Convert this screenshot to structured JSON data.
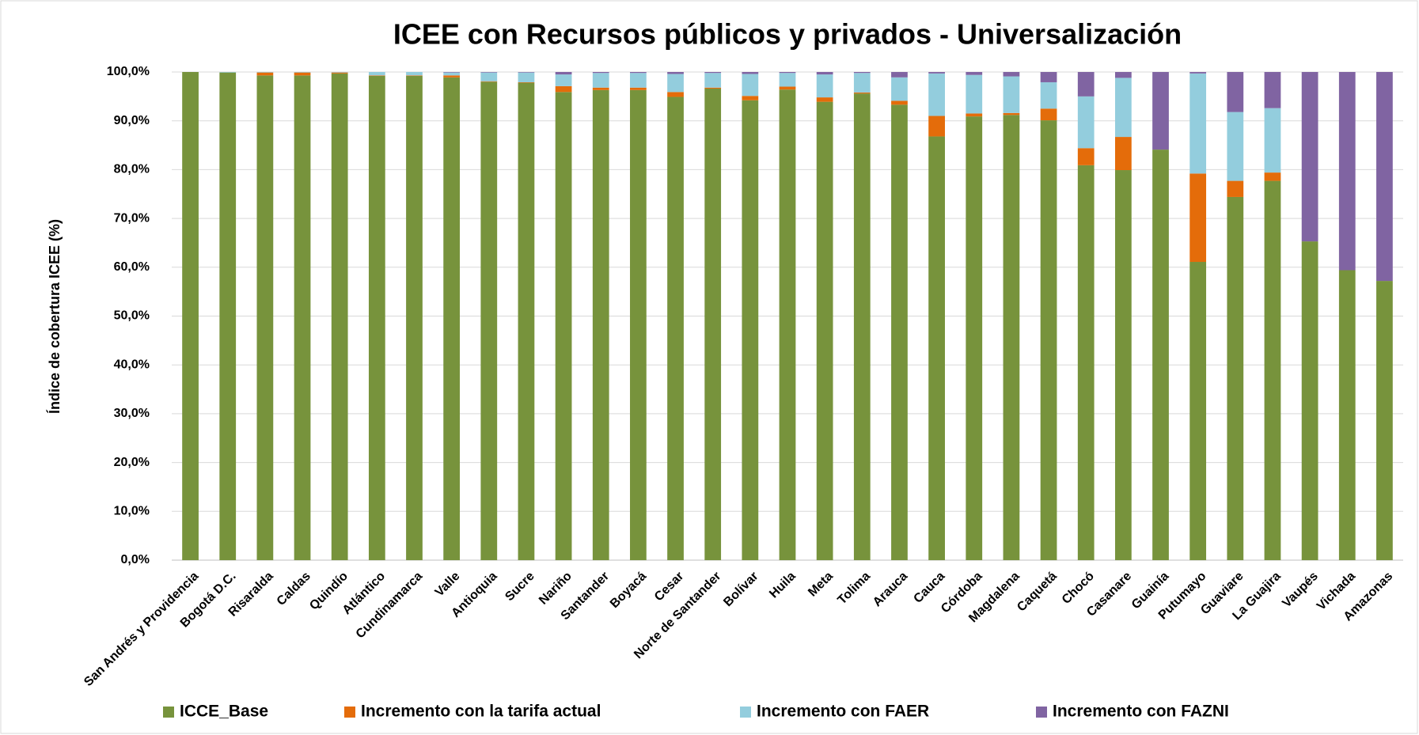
{
  "chart_data": {
    "type": "stacked-bar",
    "title": "ICEE con Recursos públicos y privados - Universalización",
    "y_label": "Índice de cobertura ICEE (%)",
    "categories": [
      "San Andrés y Providencia",
      "Bogotá D.C.",
      "Risaralda",
      "Caldas",
      "Quindío",
      "Atlántico",
      "Cundinamarca",
      "Valle",
      "Antioquia",
      "Sucre",
      "Nariño",
      "Santander",
      "Boyacá",
      "Cesar",
      "Norte de Santander",
      "Bolívar",
      "Huila",
      "Meta",
      "Tolima",
      "Arauca",
      "Cauca",
      "Córdoba",
      "Magdalena",
      "Caquetá",
      "Chocó",
      "Casanare",
      "Guainía",
      "Putumayo",
      "Guaviare",
      "La Guajira",
      "Vaupés",
      "Vichada",
      "Amazonas"
    ],
    "series": [
      {
        "name": "ICCE_Base",
        "color": "#77933c",
        "values": [
          100,
          99.9,
          99.3,
          99.3,
          99.7,
          99.2,
          99.2,
          98.9,
          98.0,
          97.8,
          95.9,
          96.3,
          96.3,
          94.9,
          96.6,
          94.2,
          96.4,
          93.9,
          95.6,
          93.3,
          86.8,
          90.9,
          91.2,
          90.1,
          80.9,
          79.9,
          84.1,
          61.1,
          74.4,
          77.7,
          65.3,
          59.4,
          57.2
        ]
      },
      {
        "name": "Incremento con la tarifa actual",
        "color": "#e46c0a",
        "values": [
          0,
          0,
          0.6,
          0.6,
          0.2,
          0.1,
          0.1,
          0.4,
          0.1,
          0.1,
          1.2,
          0.5,
          0.5,
          1.0,
          0.2,
          0.9,
          0.6,
          0.9,
          0.2,
          0.8,
          4.2,
          0.6,
          0.4,
          2.4,
          3.5,
          6.8,
          0,
          18.1,
          3.3,
          1.7,
          0,
          0,
          0
        ]
      },
      {
        "name": "Incremento con FAER",
        "color": "#93cddd",
        "values": [
          0,
          0.1,
          0.1,
          0.1,
          0.1,
          0.7,
          0.7,
          0.6,
          1.8,
          2.0,
          2.4,
          3.0,
          3.0,
          3.7,
          3.0,
          4.5,
          2.8,
          4.7,
          4.0,
          4.8,
          8.7,
          7.9,
          7.5,
          5.4,
          10.6,
          12.1,
          0,
          20.5,
          14.1,
          13.2,
          0,
          0,
          0
        ]
      },
      {
        "name": "Incremento con FAZNI",
        "color": "#8064a2",
        "values": [
          0,
          0,
          0,
          0,
          0,
          0,
          0,
          0.1,
          0.1,
          0.1,
          0.5,
          0.2,
          0.2,
          0.4,
          0.2,
          0.4,
          0.2,
          0.5,
          0.2,
          1.1,
          0.3,
          0.6,
          0.9,
          2.1,
          5.0,
          1.2,
          15.9,
          0.3,
          8.2,
          7.4,
          34.7,
          40.6,
          42.8
        ]
      }
    ],
    "ylim": [
      0,
      100
    ],
    "yticks": [
      {
        "value": 0,
        "label": "0,0%"
      },
      {
        "value": 10,
        "label": "10,0%"
      },
      {
        "value": 20,
        "label": "20,0%"
      },
      {
        "value": 30,
        "label": "30,0%"
      },
      {
        "value": 40,
        "label": "40,0%"
      },
      {
        "value": 50,
        "label": "50,0%"
      },
      {
        "value": 60,
        "label": "60,0%"
      },
      {
        "value": 70,
        "label": "70,0%"
      },
      {
        "value": 80,
        "label": "80,0%"
      },
      {
        "value": 90,
        "label": "90,0%"
      },
      {
        "value": 100,
        "label": "100,0%"
      }
    ],
    "grid": true,
    "legend": "bottom"
  }
}
